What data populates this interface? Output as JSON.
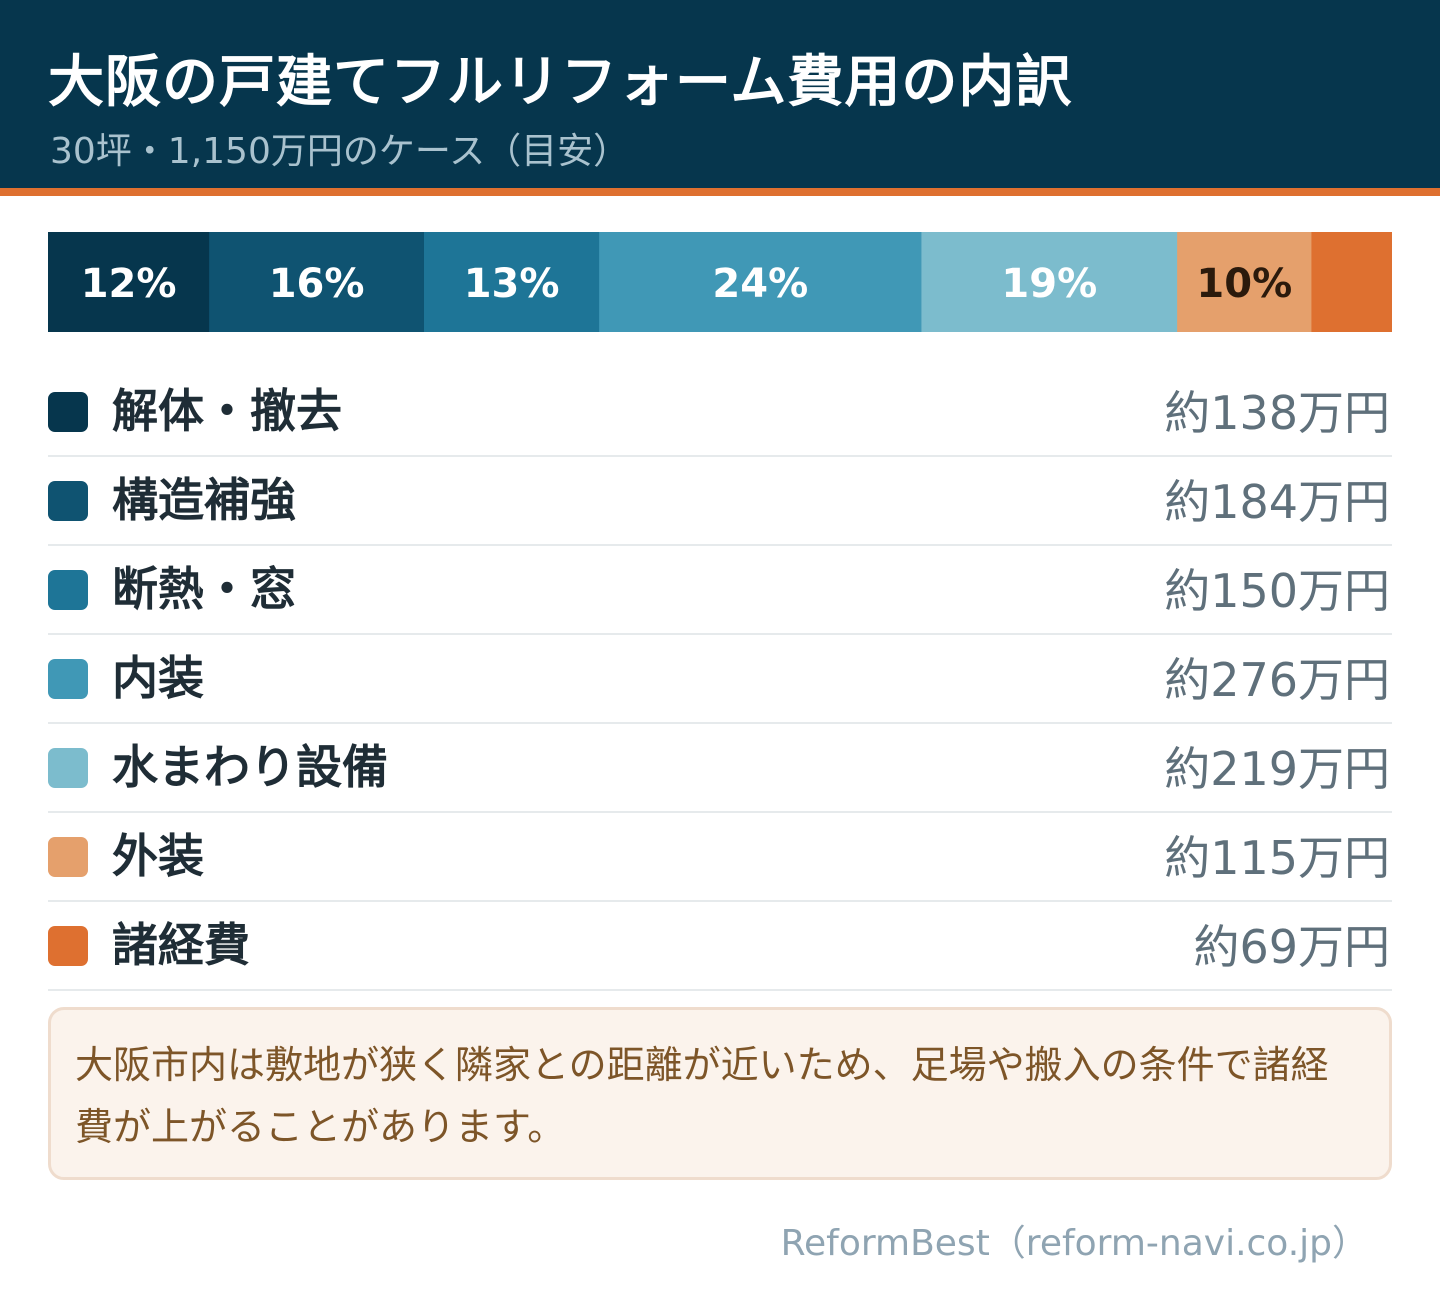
{
  "header": {
    "title": "大阪の戸建てフルリフォーム費用の内訳",
    "subtitle": "30坪・1,150万円のケース（目安）"
  },
  "colors": {
    "header_bg": "#06364d",
    "accent": "#de7030",
    "segments": [
      "#06364d",
      "#0f5371",
      "#1e7597",
      "#4098b6",
      "#7cbccd",
      "#e5a06c",
      "#de7030"
    ]
  },
  "chart_data": {
    "type": "stacked-bar",
    "title": "大阪の戸建てフルリフォーム費用の内訳",
    "subtitle": "30坪・1,150万円のケース（目安）",
    "unit": "万円",
    "categories": [
      "解体・撤去",
      "構造補強",
      "断熱・窓",
      "内装",
      "水まわり設備",
      "外装",
      "諸経費"
    ],
    "values": [
      138,
      184,
      150,
      276,
      219,
      115,
      69
    ],
    "percent_labels": [
      "12%",
      "16%",
      "13%",
      "24%",
      "19%",
      "10%",
      ""
    ],
    "amount_labels": [
      "約138万円",
      "約184万円",
      "約150万円",
      "約276万円",
      "約219万円",
      "約115万円",
      "約69万円"
    ],
    "label_colors": [
      "#ffffff",
      "#ffffff",
      "#ffffff",
      "#ffffff",
      "#ffffff",
      "#2b1a0c",
      "#ffffff"
    ],
    "total": 1150
  },
  "note": "大阪市内は敷地が狭く隣家との距離が近いため、足場や搬入の条件で諸経費が上がることがあります。",
  "source": "ReformBest（reform-navi.co.jp）"
}
